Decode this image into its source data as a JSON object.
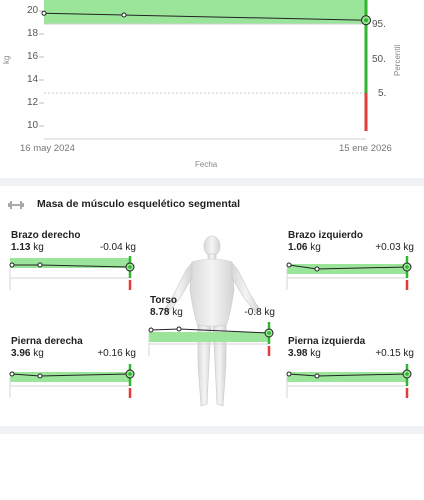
{
  "trend_chart": {
    "y_axis_label": "kg",
    "y_ticks": [
      "20",
      "18",
      "16",
      "14",
      "12",
      "10"
    ],
    "percentile_label": "Percentil",
    "percentile_ticks": [
      "95.",
      "50.",
      "5."
    ],
    "x_start": "16 may 2024",
    "x_end": "15 ene 2026",
    "x_axis_title": "Fecha"
  },
  "chart_data": {
    "type": "line",
    "x": [
      "16 may 2024",
      "15 ene 2026"
    ],
    "series": [
      {
        "values": [
          19.8,
          19.2
        ]
      }
    ],
    "ylim": [
      10,
      20
    ],
    "ylabel": "kg",
    "xlabel": "Fecha",
    "grid": true
  },
  "segmental": {
    "title": "Masa de músculo esquelético segmental",
    "icon": "dumbbell-icon",
    "brazo_derecho": {
      "name": "Brazo derecho",
      "value": "1.13",
      "unit": "kg",
      "delta": "-0.04 kg"
    },
    "brazo_izquierdo": {
      "name": "Brazo izquierdo",
      "value": "1.06",
      "unit": "kg",
      "delta": "+0.03 kg"
    },
    "torso": {
      "name": "Torso",
      "value": "8.78",
      "unit": "kg",
      "delta": "-0.8 kg"
    },
    "pierna_derecha": {
      "name": "Pierna derecha",
      "value": "3.96",
      "unit": "kg",
      "delta": "+0.16 kg"
    },
    "pierna_izquierda": {
      "name": "Pierna izquierda",
      "value": "3.98",
      "unit": "kg",
      "delta": "+0.15 kg"
    }
  },
  "colors": {
    "band_green": "#9be59b",
    "line_green": "#2fb52f",
    "line_red": "#e23b3b",
    "divider": "#f0f1f4"
  }
}
